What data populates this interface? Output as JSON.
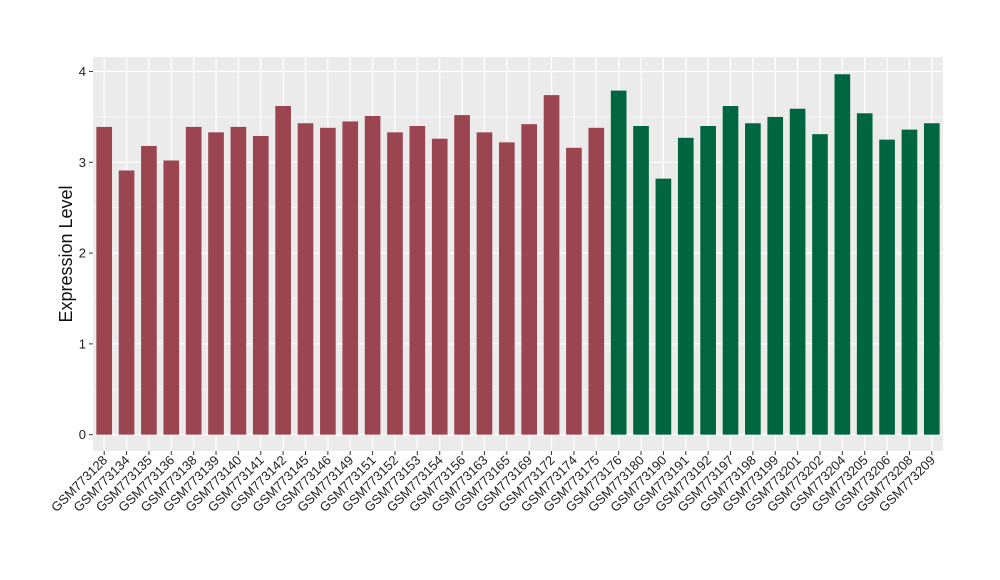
{
  "chart_data": {
    "type": "bar",
    "ylabel": "Expression Level",
    "xlabel": "",
    "title": "",
    "ylim": [
      -0.18,
      4.16
    ],
    "yticks": [
      0,
      1,
      2,
      3,
      4
    ],
    "grid": true,
    "legend": "none",
    "colors": {
      "group1": "#9A4550",
      "group2": "#006641",
      "panel": "#EBEBEB",
      "grid": "#FFFFFF"
    },
    "categories": [
      "GSM773128",
      "GSM773134",
      "GSM773135",
      "GSM773136",
      "GSM773138",
      "GSM773139",
      "GSM773140",
      "GSM773141",
      "GSM773142",
      "GSM773145",
      "GSM773146",
      "GSM773149",
      "GSM773151",
      "GSM773152",
      "GSM773153",
      "GSM773154",
      "GSM773156",
      "GSM773163",
      "GSM773165",
      "GSM773169",
      "GSM773172",
      "GSM773174",
      "GSM773175",
      "GSM773176",
      "GSM773180",
      "GSM773190",
      "GSM773191",
      "GSM773192",
      "GSM773197",
      "GSM773198",
      "GSM773199",
      "GSM773201",
      "GSM773202",
      "GSM773204",
      "GSM773205",
      "GSM773206",
      "GSM773208",
      "GSM773209"
    ],
    "values": [
      3.39,
      2.91,
      3.18,
      3.02,
      3.39,
      3.33,
      3.39,
      3.29,
      3.62,
      3.43,
      3.38,
      3.45,
      3.51,
      3.33,
      3.4,
      3.26,
      3.52,
      3.33,
      3.22,
      3.42,
      3.74,
      3.16,
      3.38,
      3.79,
      3.4,
      2.82,
      3.27,
      3.4,
      3.62,
      3.43,
      3.5,
      3.59,
      3.31,
      3.97,
      3.54,
      3.25,
      3.36,
      3.43
    ],
    "groups": [
      1,
      1,
      1,
      1,
      1,
      1,
      1,
      1,
      1,
      1,
      1,
      1,
      1,
      1,
      1,
      1,
      1,
      1,
      1,
      1,
      1,
      1,
      1,
      2,
      2,
      2,
      2,
      2,
      2,
      2,
      2,
      2,
      2,
      2,
      2,
      2,
      2,
      2
    ]
  }
}
